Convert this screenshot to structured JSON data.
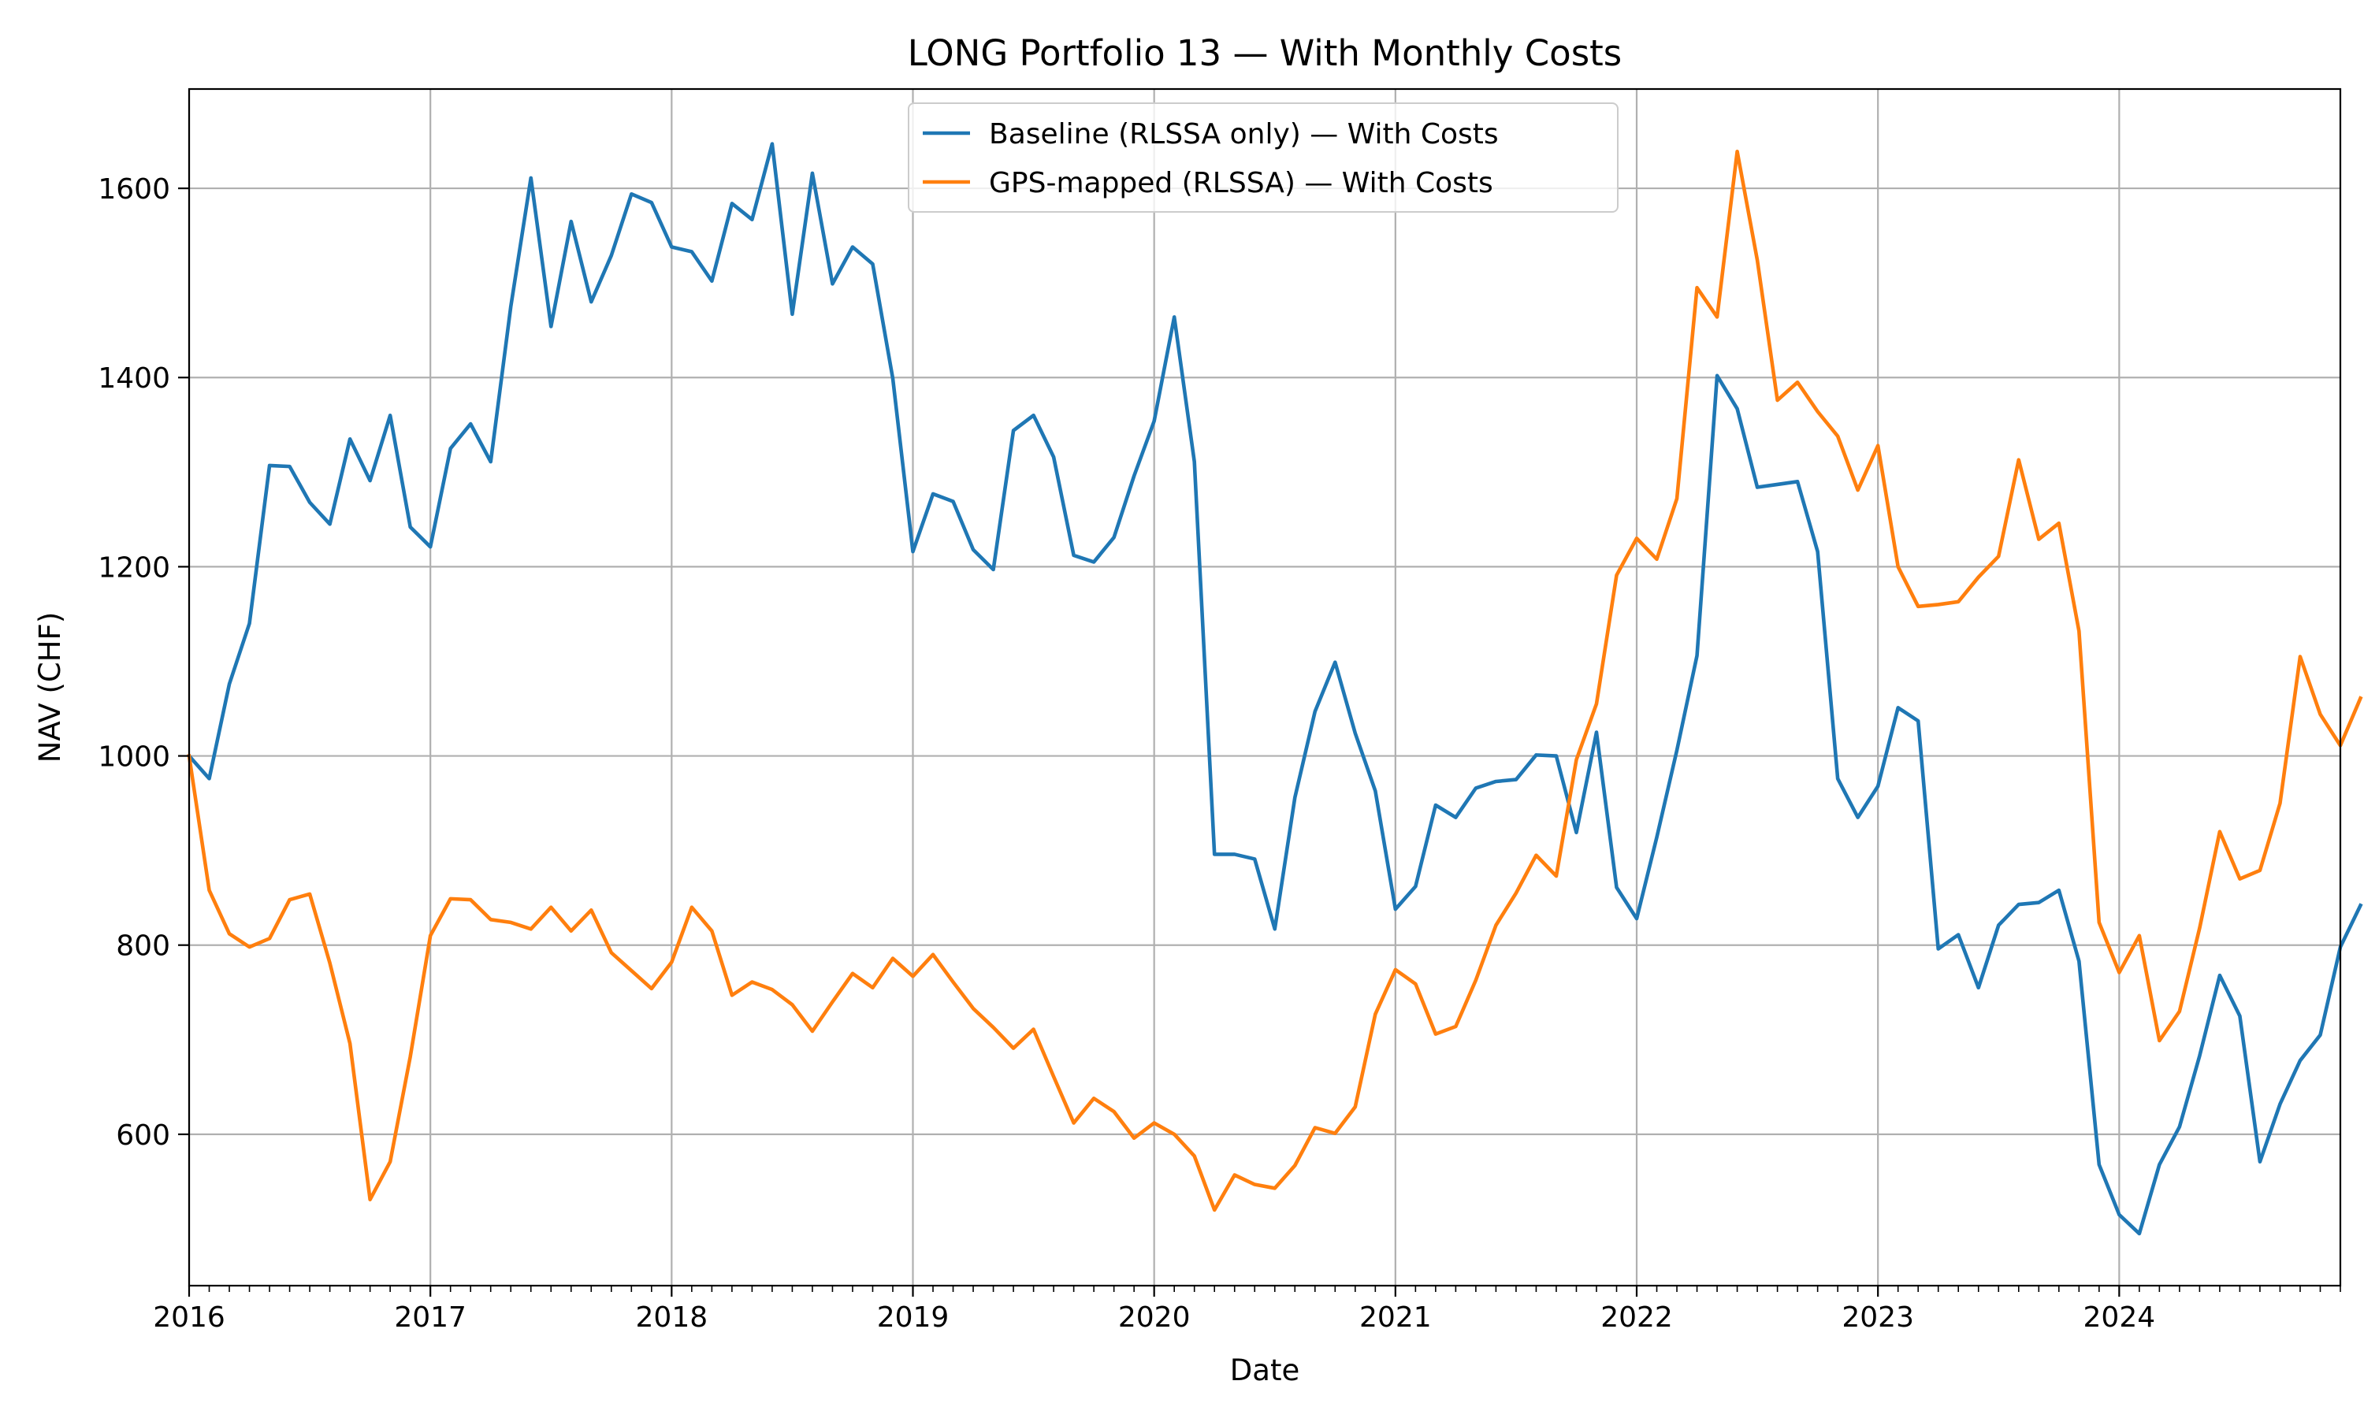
{
  "chart_data": {
    "type": "line",
    "title": "LONG Portfolio 13 — With Monthly Costs",
    "xlabel": "Date",
    "ylabel": "NAV (CHF)",
    "grid": true,
    "legend_position": "top-center",
    "x_range": [
      "2016-01",
      "2024-12"
    ],
    "x_ticks": [
      "2016",
      "2017",
      "2018",
      "2019",
      "2020",
      "2021",
      "2022",
      "2023",
      "2024"
    ],
    "ylim": [
      440,
      1705
    ],
    "y_ticks": [
      600,
      800,
      1000,
      1200,
      1400,
      1600
    ],
    "series": [
      {
        "name": "Baseline (RLSSA only) — With Costs",
        "color": "#1f77b4",
        "start": "2016-01",
        "frequency": "monthly",
        "values": [
          1000,
          976,
          1076,
          1140,
          1307,
          1306,
          1268,
          1245,
          1335,
          1291,
          1360,
          1242,
          1221,
          1325,
          1351,
          1311,
          1475,
          1611,
          1454,
          1565,
          1480,
          1529,
          1594,
          1585,
          1538,
          1533,
          1502,
          1584,
          1567,
          1647,
          1467,
          1616,
          1499,
          1538,
          1520,
          1399,
          1216,
          1277,
          1269,
          1218,
          1197,
          1344,
          1360,
          1316,
          1212,
          1205,
          1231,
          1296,
          1354,
          1464,
          1311,
          896,
          896,
          891,
          817,
          956,
          1047,
          1099,
          1024,
          963,
          838,
          862,
          948,
          935,
          966,
          973,
          975,
          1001,
          1000,
          919,
          1025,
          861,
          828,
          914,
          1006,
          1106,
          1402,
          1367,
          1284,
          1287,
          1290,
          1216,
          976,
          935,
          968,
          1051,
          1037,
          796,
          811,
          755,
          821,
          843,
          845,
          858,
          783,
          568,
          515,
          495,
          568,
          608,
          683,
          768,
          725,
          571,
          632,
          678,
          705,
          798,
          842
        ]
      },
      {
        "name": "GPS-mapped (RLSSA) — With Costs",
        "color": "#ff7f0e",
        "start": "2016-01",
        "frequency": "monthly",
        "values": [
          1000,
          858,
          812,
          798,
          807,
          848,
          854,
          781,
          696,
          531,
          571,
          682,
          810,
          849,
          848,
          827,
          824,
          817,
          840,
          815,
          837,
          792,
          773,
          754,
          782,
          840,
          815,
          747,
          761,
          753,
          737,
          709,
          740,
          770,
          755,
          786,
          767,
          790,
          761,
          733,
          713,
          691,
          711,
          661,
          612,
          638,
          624,
          596,
          612,
          600,
          577,
          520,
          557,
          547,
          543,
          567,
          607,
          601,
          629,
          727,
          774,
          759,
          706,
          714,
          763,
          821,
          855,
          895,
          873,
          996,
          1055,
          1191,
          1230,
          1208,
          1272,
          1495,
          1464,
          1639,
          1524,
          1376,
          1395,
          1364,
          1338,
          1281,
          1328,
          1200,
          1158,
          1160,
          1163,
          1189,
          1211,
          1313,
          1229,
          1246,
          1132,
          824,
          771,
          810,
          699,
          730,
          818,
          920,
          870,
          879,
          950,
          1105,
          1044,
          1011,
          1061
        ]
      }
    ]
  }
}
